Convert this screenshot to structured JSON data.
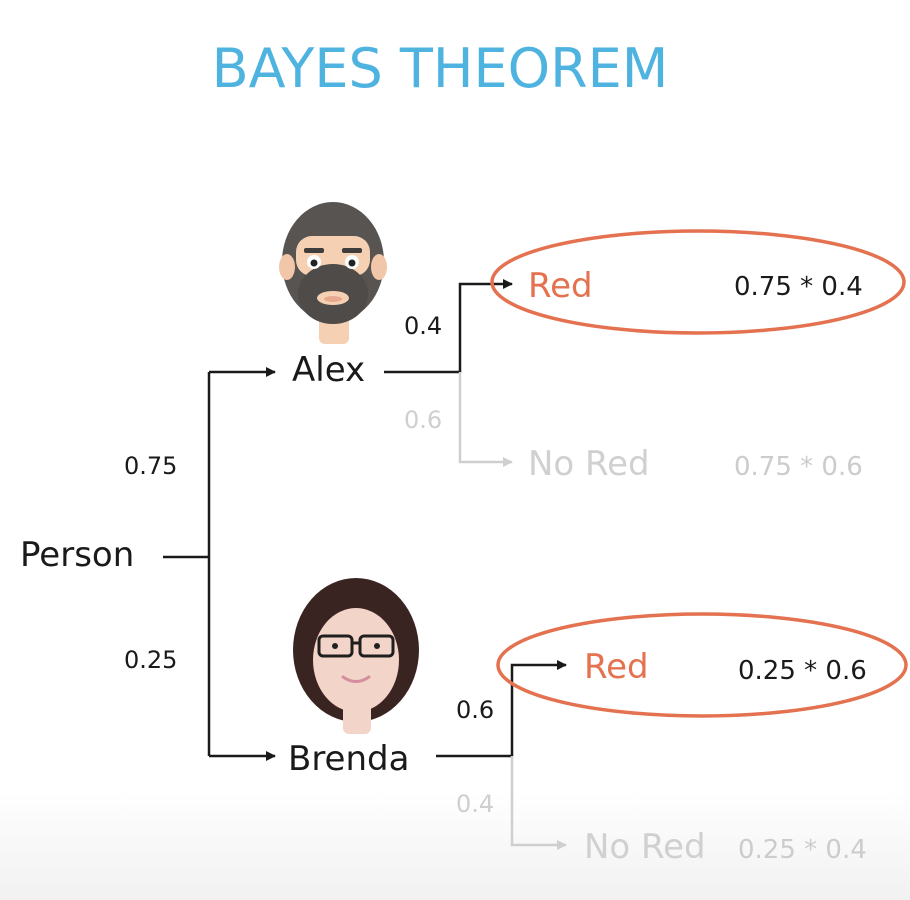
{
  "title": "BAYES THEOREM",
  "root": {
    "label": "Person"
  },
  "branches": [
    {
      "person": "Alex",
      "avatar_icon": "man-avatar-icon",
      "probability": "0.75",
      "red": {
        "label": "Red",
        "probability": "0.4",
        "product": "0.75 * 0.4"
      },
      "no_red": {
        "label": "No Red",
        "probability": "0.6",
        "product": "0.75 * 0.6"
      }
    },
    {
      "person": "Brenda",
      "avatar_icon": "woman-avatar-icon",
      "probability": "0.25",
      "red": {
        "label": "Red",
        "probability": "0.6",
        "product": "0.25 * 0.6"
      },
      "no_red": {
        "label": "No Red",
        "probability": "0.4",
        "product": "0.25 * 0.4"
      }
    }
  ],
  "colors": {
    "title": "#4fb3e0",
    "highlight": "#e4714f",
    "dimmed": "#cfcfcf",
    "ink": "#1a1a1a"
  }
}
